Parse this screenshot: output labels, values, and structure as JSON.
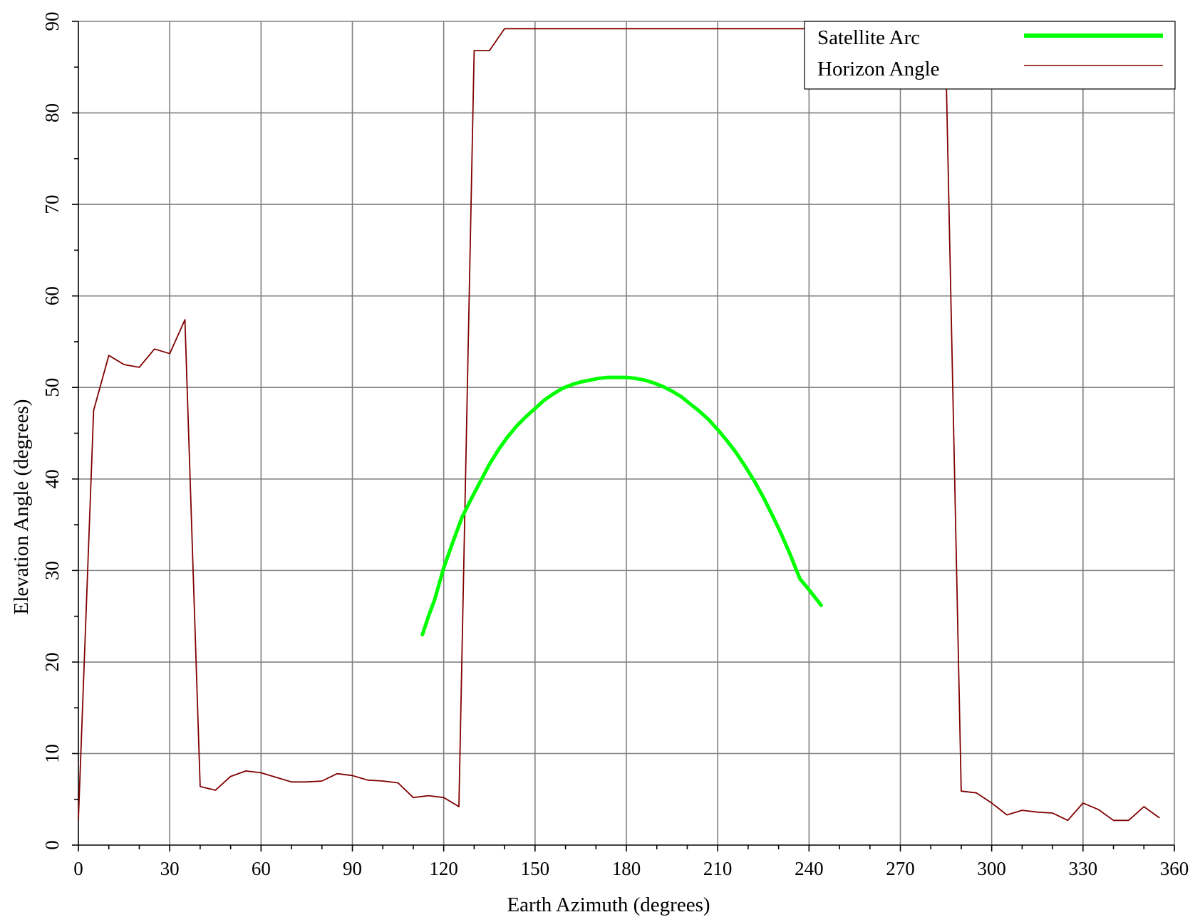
{
  "chart_data": {
    "type": "line",
    "xlabel": "Earth Azimuth (degrees)",
    "ylabel": "Elevation Angle (degrees)",
    "xlim": [
      0,
      360
    ],
    "ylim": [
      0,
      90
    ],
    "x_ticks": [
      "0",
      "30",
      "60",
      "90",
      "120",
      "150",
      "180",
      "210",
      "240",
      "270",
      "300",
      "330",
      "360"
    ],
    "y_ticks": [
      "0",
      "10",
      "20",
      "30",
      "40",
      "50",
      "60",
      "70",
      "80",
      "90"
    ],
    "grid": true,
    "legend_position": "top-right",
    "series": [
      {
        "name": "Satellite Arc",
        "color": "#00ff00",
        "x": [
          113,
          115,
          117,
          120,
          123,
          126,
          129,
          132,
          135,
          138,
          141,
          144,
          147,
          150,
          153,
          156,
          159,
          162,
          165,
          168,
          171,
          174,
          177,
          180,
          183,
          186,
          189,
          192,
          195,
          198,
          201,
          204,
          207,
          210,
          213,
          216,
          219,
          222,
          225,
          228,
          231,
          234,
          237,
          240,
          244
        ],
        "y": [
          23.0,
          25.0,
          26.8,
          30.3,
          33.1,
          35.8,
          37.8,
          39.7,
          41.6,
          43.2,
          44.6,
          45.8,
          46.8,
          47.7,
          48.6,
          49.3,
          49.9,
          50.3,
          50.6,
          50.8,
          51.0,
          51.1,
          51.1,
          51.1,
          51.0,
          50.8,
          50.5,
          50.1,
          49.6,
          49.0,
          48.2,
          47.4,
          46.5,
          45.4,
          44.2,
          42.9,
          41.4,
          39.8,
          38.0,
          36.0,
          33.9,
          31.6,
          29.1,
          27.9,
          26.2
        ]
      },
      {
        "name": "Horizon Angle",
        "color": "#800000",
        "x": [
          0,
          5,
          10,
          15,
          20,
          25,
          30,
          35,
          40,
          45,
          50,
          55,
          60,
          65,
          70,
          75,
          80,
          85,
          90,
          95,
          100,
          105,
          110,
          115,
          120,
          125,
          130,
          135,
          140,
          145,
          150,
          155,
          160,
          165,
          170,
          175,
          180,
          185,
          190,
          195,
          200,
          205,
          210,
          215,
          220,
          225,
          230,
          235,
          240,
          245,
          250,
          255,
          260,
          265,
          270,
          275,
          280,
          285,
          290,
          295,
          300,
          305,
          310,
          315,
          320,
          325,
          330,
          335,
          340,
          345,
          350,
          355
        ],
        "y": [
          2.8,
          47.5,
          53.5,
          52.5,
          52.2,
          54.2,
          53.7,
          57.4,
          6.4,
          6.0,
          7.5,
          8.1,
          7.9,
          7.4,
          6.9,
          6.9,
          7.0,
          7.8,
          7.6,
          7.1,
          7.0,
          6.8,
          5.2,
          5.4,
          5.2,
          4.2,
          86.8,
          86.8,
          89.2,
          89.2,
          89.2,
          89.2,
          89.2,
          89.2,
          89.2,
          89.2,
          89.2,
          89.2,
          89.2,
          89.2,
          89.2,
          89.2,
          89.2,
          89.2,
          89.2,
          89.2,
          89.2,
          89.2,
          89.2,
          89.2,
          89.2,
          89.2,
          89.2,
          89.2,
          89.2,
          89.2,
          89.2,
          85.0,
          5.9,
          5.7,
          4.6,
          3.3,
          3.8,
          3.6,
          3.5,
          2.7,
          4.6,
          3.9,
          2.7,
          2.7,
          4.2,
          3.0
        ]
      }
    ]
  }
}
